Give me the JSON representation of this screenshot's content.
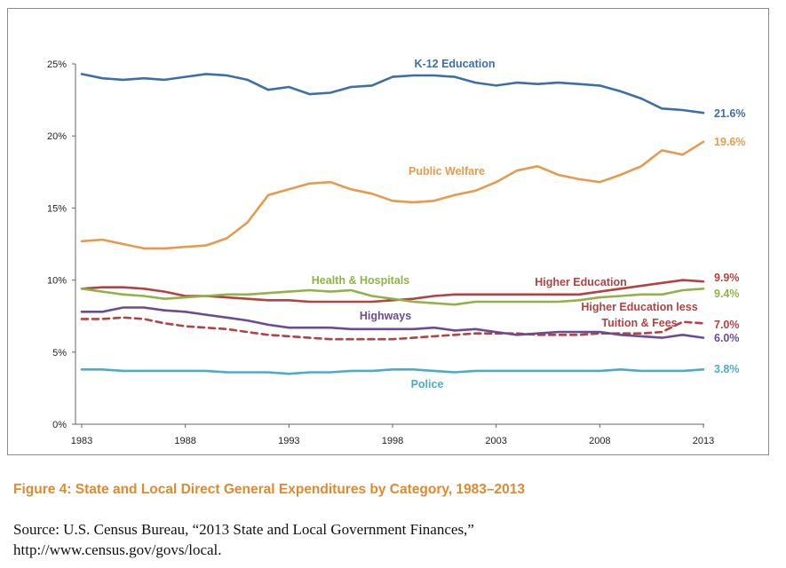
{
  "caption": "Figure 4: State and Local Direct General Expenditures by Category, 1983–2013",
  "source_line1": "Source: U.S. Census Bureau, “2013 State and Local Government Finances,”",
  "source_line2": "http://www.census.gov/govs/local.",
  "chart_data": {
    "type": "line",
    "title": "",
    "xlabel": "",
    "ylabel": "",
    "ylim": [
      0,
      25
    ],
    "xlim": [
      1983,
      2013
    ],
    "grid": false,
    "y_ticks": [
      "0%",
      "5%",
      "10%",
      "15%",
      "20%",
      "25%"
    ],
    "x_ticks": [
      "1983",
      "1988",
      "1993",
      "1998",
      "2003",
      "2008",
      "2013"
    ],
    "x": [
      1983,
      1984,
      1985,
      1986,
      1987,
      1988,
      1989,
      1990,
      1991,
      1992,
      1993,
      1994,
      1995,
      1996,
      1997,
      1998,
      1999,
      2000,
      2001,
      2002,
      2003,
      2004,
      2005,
      2006,
      2007,
      2008,
      2009,
      2010,
      2011,
      2012,
      2013
    ],
    "series": [
      {
        "name": "K-12 Education",
        "color": "#3d6fa6",
        "dashed": false,
        "end_label": "21.6%",
        "values": [
          24.3,
          24.0,
          23.9,
          24.0,
          23.9,
          24.1,
          24.3,
          24.2,
          23.9,
          23.2,
          23.4,
          22.9,
          23.0,
          23.4,
          23.5,
          24.1,
          24.2,
          24.2,
          24.1,
          23.7,
          23.5,
          23.7,
          23.6,
          23.7,
          23.6,
          23.5,
          23.1,
          22.6,
          21.9,
          21.8,
          21.6
        ]
      },
      {
        "name": "Public Welfare",
        "color": "#e89a4c",
        "dashed": false,
        "end_label": "19.6%",
        "values": [
          12.7,
          12.8,
          12.5,
          12.2,
          12.2,
          12.3,
          12.4,
          12.9,
          14.0,
          15.9,
          16.3,
          16.7,
          16.8,
          16.3,
          16.0,
          15.5,
          15.4,
          15.5,
          15.9,
          16.2,
          16.8,
          17.6,
          17.9,
          17.3,
          17.0,
          16.8,
          17.3,
          17.9,
          19.0,
          18.7,
          19.6
        ]
      },
      {
        "name": "Higher Education",
        "color": "#b34242",
        "dashed": false,
        "end_label": "9.9%",
        "values": [
          9.4,
          9.5,
          9.5,
          9.4,
          9.2,
          8.9,
          8.9,
          8.8,
          8.7,
          8.6,
          8.6,
          8.5,
          8.5,
          8.5,
          8.5,
          8.6,
          8.7,
          8.9,
          9.0,
          9.0,
          9.0,
          9.0,
          9.0,
          9.0,
          9.0,
          9.2,
          9.4,
          9.6,
          9.8,
          10.0,
          9.9
        ]
      },
      {
        "name": "Health & Hospitals",
        "color": "#8fb347",
        "dashed": false,
        "end_label": "9.4%",
        "values": [
          9.4,
          9.2,
          9.0,
          8.9,
          8.7,
          8.8,
          8.9,
          9.0,
          9.0,
          9.1,
          9.2,
          9.3,
          9.2,
          9.3,
          8.9,
          8.7,
          8.5,
          8.4,
          8.3,
          8.5,
          8.5,
          8.5,
          8.5,
          8.5,
          8.6,
          8.8,
          8.9,
          9.0,
          9.0,
          9.3,
          9.4
        ]
      },
      {
        "name": "Higher Education less Tuition & Fees",
        "label_line1": "Higher Education less",
        "label_line2": "Tuition & Fees",
        "color": "#b34242",
        "dashed": true,
        "end_label": "7.0%",
        "values": [
          7.3,
          7.3,
          7.4,
          7.3,
          7.0,
          6.8,
          6.7,
          6.6,
          6.4,
          6.2,
          6.1,
          6.0,
          5.9,
          5.9,
          5.9,
          5.9,
          6.0,
          6.1,
          6.2,
          6.3,
          6.3,
          6.3,
          6.2,
          6.2,
          6.2,
          6.3,
          6.3,
          6.3,
          6.4,
          7.1,
          7.0
        ]
      },
      {
        "name": "Highways",
        "color": "#6a4c93",
        "dashed": false,
        "end_label": "6.0%",
        "values": [
          7.8,
          7.8,
          8.1,
          8.1,
          7.9,
          7.8,
          7.6,
          7.4,
          7.2,
          6.9,
          6.7,
          6.7,
          6.7,
          6.6,
          6.6,
          6.6,
          6.6,
          6.7,
          6.5,
          6.6,
          6.4,
          6.2,
          6.3,
          6.4,
          6.4,
          6.4,
          6.2,
          6.1,
          6.0,
          6.2,
          6.0
        ]
      },
      {
        "name": "Police",
        "color": "#4aacc6",
        "dashed": false,
        "end_label": "3.8%",
        "values": [
          3.8,
          3.8,
          3.7,
          3.7,
          3.7,
          3.7,
          3.7,
          3.6,
          3.6,
          3.6,
          3.5,
          3.6,
          3.6,
          3.7,
          3.7,
          3.8,
          3.8,
          3.7,
          3.6,
          3.7,
          3.7,
          3.7,
          3.7,
          3.7,
          3.7,
          3.7,
          3.8,
          3.7,
          3.7,
          3.7,
          3.8
        ]
      }
    ]
  }
}
